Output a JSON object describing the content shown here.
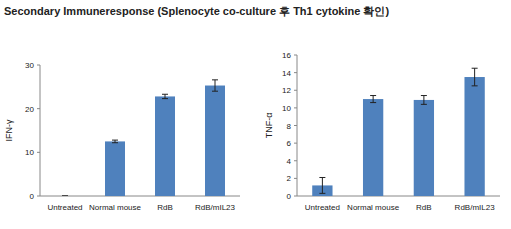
{
  "title": "Secondary Immuneresponse (Splenocyte co-culture 후 Th1 cytokine 확인)",
  "chart_data": [
    {
      "type": "bar",
      "y_label": "IFN-γ",
      "categories": [
        "Untreated",
        "Normal mouse",
        "RdB",
        "RdB/mIL23"
      ],
      "values": [
        0,
        12.5,
        22.8,
        25.3
      ],
      "errors": [
        0,
        0.3,
        0.5,
        1.3
      ],
      "color": "#4f81bd",
      "ylim": [
        0,
        30
      ],
      "yticks": [
        0,
        10,
        20,
        30
      ],
      "grid": false
    },
    {
      "type": "bar",
      "y_label": "TNF-α",
      "categories": [
        "Untreated",
        "Normal mouse",
        "RdB",
        "RdB/mIL23"
      ],
      "values": [
        1.2,
        11.0,
        10.9,
        13.5
      ],
      "errors": [
        0.9,
        0.4,
        0.5,
        1.0
      ],
      "color": "#4f81bd",
      "ylim": [
        0,
        16
      ],
      "yticks": [
        0,
        2,
        4,
        6,
        8,
        10,
        12,
        14,
        16
      ],
      "grid": false
    }
  ]
}
